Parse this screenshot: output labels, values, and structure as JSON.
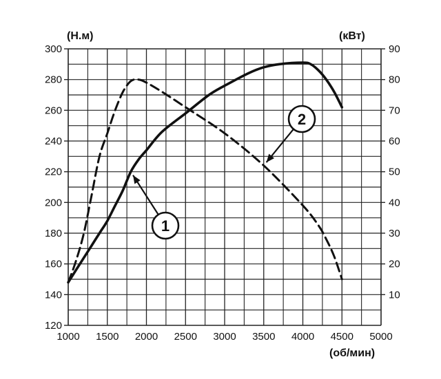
{
  "chart_data": {
    "type": "line",
    "title": "",
    "x": [
      1000,
      1500,
      2000,
      2500,
      3000,
      3500,
      4000,
      4500
    ],
    "xlabel": "(об/мин)",
    "xlim": [
      1000,
      5000
    ],
    "xticks": [
      "1000",
      "1500",
      "2000",
      "2500",
      "3000",
      "3500",
      "4000",
      "4500",
      "5000"
    ],
    "ylabel_left": "(Н.м)",
    "ylim_left": [
      120,
      300
    ],
    "yticks_left": [
      "120",
      "140",
      "160",
      "180",
      "200",
      "220",
      "240",
      "260",
      "280",
      "300"
    ],
    "ylabel_right": "(кВт)",
    "ylim_right": [
      0,
      90
    ],
    "yticks_right": [
      "10",
      "20",
      "30",
      "40",
      "50",
      "60",
      "70",
      "80",
      "90"
    ],
    "grid": true,
    "series": [
      {
        "name": "1",
        "axis": "right",
        "style": "solid",
        "points": [
          [
            1000,
            14
          ],
          [
            1100,
            18
          ],
          [
            1200,
            22
          ],
          [
            1300,
            26
          ],
          [
            1400,
            30
          ],
          [
            1500,
            34
          ],
          [
            1600,
            39
          ],
          [
            1700,
            44
          ],
          [
            1800,
            50
          ],
          [
            1900,
            54
          ],
          [
            2000,
            57
          ],
          [
            2200,
            63
          ],
          [
            2500,
            69
          ],
          [
            2800,
            75
          ],
          [
            3000,
            78
          ],
          [
            3300,
            82
          ],
          [
            3500,
            84
          ],
          [
            3700,
            85
          ],
          [
            4000,
            85.5
          ],
          [
            4100,
            85
          ],
          [
            4200,
            83
          ],
          [
            4300,
            80
          ],
          [
            4400,
            76
          ],
          [
            4500,
            71
          ]
        ]
      },
      {
        "name": "2",
        "axis": "left",
        "style": "dashed",
        "points": [
          [
            1000,
            148
          ],
          [
            1100,
            162
          ],
          [
            1200,
            180
          ],
          [
            1300,
            205
          ],
          [
            1400,
            230
          ],
          [
            1500,
            245
          ],
          [
            1600,
            260
          ],
          [
            1700,
            272
          ],
          [
            1800,
            279
          ],
          [
            1900,
            280
          ],
          [
            2000,
            278
          ],
          [
            2200,
            272
          ],
          [
            2500,
            262
          ],
          [
            3000,
            245
          ],
          [
            3500,
            224
          ],
          [
            4000,
            198
          ],
          [
            4200,
            185
          ],
          [
            4300,
            176
          ],
          [
            4400,
            165
          ],
          [
            4500,
            150
          ]
        ]
      }
    ],
    "callouts": [
      {
        "label": "1",
        "series": "1"
      },
      {
        "label": "2",
        "series": "2"
      }
    ],
    "colors": {
      "line": "#111111",
      "grid": "#222222",
      "background": "#ffffff"
    }
  }
}
